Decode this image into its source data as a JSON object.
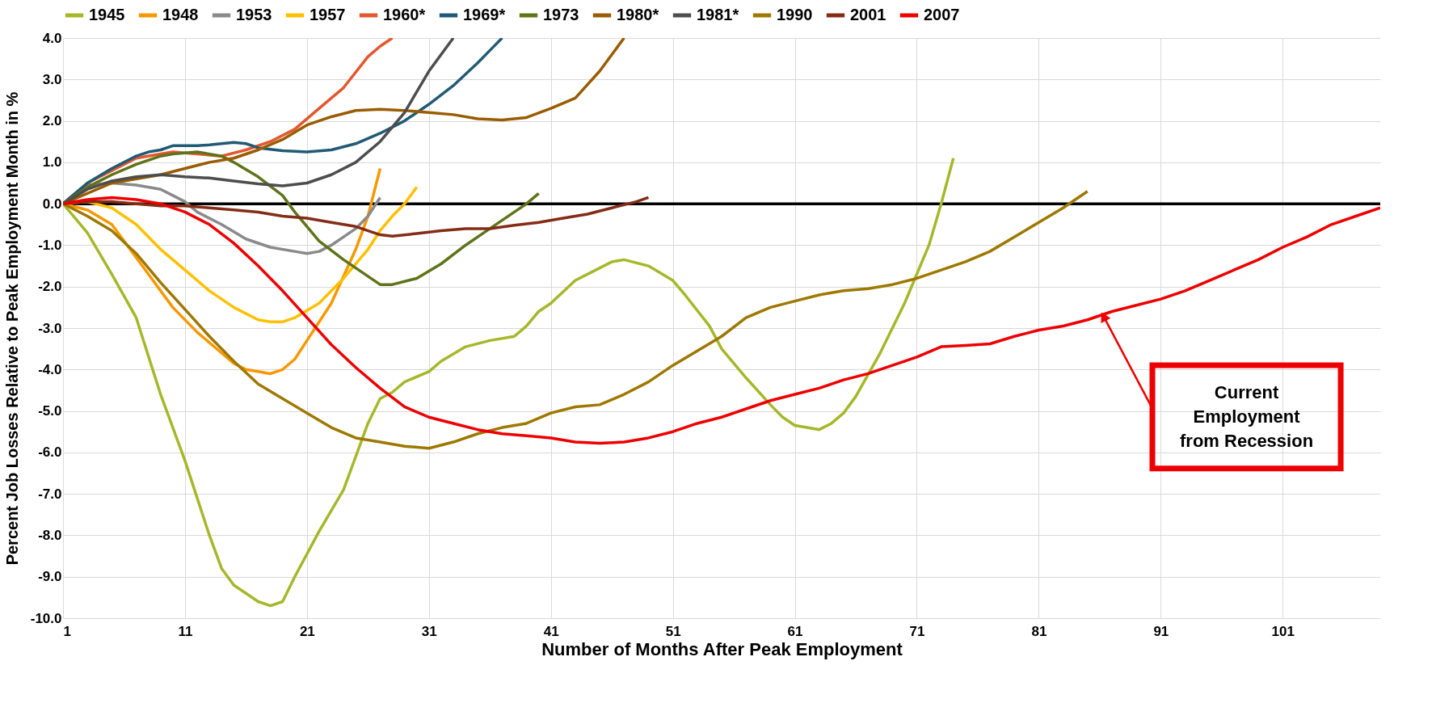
{
  "chart_data": {
    "type": "line",
    "xlabel": "Number of Months After Peak Employment",
    "ylabel": "Percent Job Losses Relative to Peak Employment Month in %",
    "xlim": [
      1,
      109
    ],
    "xticks": [
      1,
      11,
      21,
      31,
      41,
      51,
      61,
      71,
      81,
      91,
      101
    ],
    "ylim": [
      -10,
      4
    ],
    "yticks": [
      {
        "value": 4,
        "label": "4.0"
      },
      {
        "value": 3,
        "label": "3.0"
      },
      {
        "value": 2,
        "label": "2.0"
      },
      {
        "value": 1,
        "label": "1.0"
      },
      {
        "value": 0,
        "label": "0.0"
      },
      {
        "value": -1,
        "label": "-1.0"
      },
      {
        "value": -2,
        "label": "-2.0"
      },
      {
        "value": -3,
        "label": "-3.0"
      },
      {
        "value": -4,
        "label": "-4.0"
      },
      {
        "value": -5,
        "label": "-5.0"
      },
      {
        "value": -6,
        "label": "-6.0"
      },
      {
        "value": -7,
        "label": "-7.0"
      },
      {
        "value": -8,
        "label": "-8.0"
      },
      {
        "value": -9,
        "label": "-9.0"
      },
      {
        "value": -10,
        "label": "-10.0"
      }
    ],
    "grid": true,
    "legend": "top",
    "ref_lines": [
      {
        "axis": "y",
        "value": 0,
        "color": "#000000"
      }
    ],
    "annotations": [
      "Current\nEmployment\nfrom Recession"
    ],
    "series": [
      {
        "name": "1945",
        "color": "#a5b82a",
        "x": [
          1,
          3,
          5,
          7,
          9,
          11,
          13,
          14,
          15,
          17,
          18,
          19,
          20,
          22,
          24,
          26,
          27,
          28,
          29,
          31,
          32,
          34,
          36,
          38,
          39,
          40,
          41,
          43,
          45,
          46,
          47,
          49,
          51,
          52,
          54,
          55,
          57,
          59,
          60,
          61,
          62,
          63,
          64,
          65,
          66,
          68,
          70,
          72,
          73,
          74
        ],
        "values": [
          0,
          -0.7,
          -1.7,
          -2.75,
          -4.6,
          -6.2,
          -8.0,
          -8.8,
          -9.2,
          -9.6,
          -9.7,
          -9.6,
          -9.0,
          -7.9,
          -6.9,
          -5.3,
          -4.7,
          -4.55,
          -4.3,
          -4.05,
          -3.8,
          -3.45,
          -3.3,
          -3.2,
          -2.95,
          -2.6,
          -2.4,
          -1.85,
          -1.55,
          -1.4,
          -1.35,
          -1.5,
          -1.85,
          -2.2,
          -2.95,
          -3.5,
          -4.2,
          -4.85,
          -5.15,
          -5.35,
          -5.4,
          -5.45,
          -5.3,
          -5.05,
          -4.65,
          -3.6,
          -2.4,
          -1.0,
          0.0,
          1.1
        ]
      },
      {
        "name": "1948",
        "color": "#f79800",
        "x": [
          1,
          3,
          5,
          6,
          8,
          10,
          12,
          14,
          15,
          16,
          17,
          18,
          19,
          20,
          21,
          23,
          25,
          26,
          27
        ],
        "values": [
          0,
          -0.15,
          -0.5,
          -0.9,
          -1.7,
          -2.5,
          -3.1,
          -3.6,
          -3.85,
          -4.0,
          -4.05,
          -4.1,
          -4.0,
          -3.75,
          -3.3,
          -2.4,
          -1.1,
          -0.3,
          0.85
        ]
      },
      {
        "name": "1953",
        "color": "#8a8a8a",
        "x": [
          1,
          3,
          5,
          7,
          9,
          10,
          11,
          12,
          14,
          16,
          18,
          20,
          21,
          22,
          23,
          25,
          26,
          27
        ],
        "values": [
          0,
          0.45,
          0.5,
          0.45,
          0.35,
          0.2,
          0.05,
          -0.2,
          -0.5,
          -0.85,
          -1.05,
          -1.15,
          -1.2,
          -1.15,
          -1.0,
          -0.6,
          -0.3,
          0.15
        ]
      },
      {
        "name": "1957",
        "color": "#ffc000",
        "x": [
          1,
          3,
          5,
          7,
          9,
          11,
          13,
          15,
          17,
          18,
          19,
          20,
          22,
          24,
          26,
          27,
          28,
          29,
          30
        ],
        "values": [
          0,
          0.05,
          -0.1,
          -0.5,
          -1.1,
          -1.6,
          -2.1,
          -2.5,
          -2.8,
          -2.85,
          -2.85,
          -2.75,
          -2.4,
          -1.8,
          -1.1,
          -0.65,
          -0.3,
          0.0,
          0.4
        ]
      },
      {
        "name": "1960*",
        "color": "#e4572e",
        "x": [
          1,
          3,
          5,
          7,
          9,
          10,
          12,
          14,
          16,
          18,
          20,
          22,
          24,
          26,
          27,
          28
        ],
        "values": [
          0,
          0.5,
          0.8,
          1.1,
          1.2,
          1.25,
          1.2,
          1.15,
          1.3,
          1.5,
          1.8,
          2.3,
          2.8,
          3.55,
          3.8,
          4.0
        ]
      },
      {
        "name": "1969*",
        "color": "#215a75",
        "x": [
          1,
          3,
          5,
          7,
          8,
          9,
          10,
          12,
          13,
          15,
          16,
          17,
          19,
          21,
          23,
          25,
          27,
          29,
          31,
          33,
          35,
          36,
          37
        ],
        "values": [
          0,
          0.5,
          0.85,
          1.15,
          1.25,
          1.3,
          1.4,
          1.4,
          1.42,
          1.48,
          1.45,
          1.35,
          1.28,
          1.25,
          1.3,
          1.45,
          1.7,
          2.0,
          2.4,
          2.85,
          3.4,
          3.7,
          4.0
        ]
      },
      {
        "name": "1973",
        "color": "#5f7319",
        "x": [
          1,
          3,
          5,
          7,
          9,
          10,
          12,
          14,
          15,
          17,
          19,
          20,
          22,
          24,
          26,
          27,
          28,
          30,
          32,
          34,
          36,
          38,
          39,
          40
        ],
        "values": [
          0,
          0.4,
          0.7,
          0.95,
          1.15,
          1.2,
          1.25,
          1.15,
          1.0,
          0.65,
          0.2,
          -0.2,
          -0.9,
          -1.35,
          -1.75,
          -1.95,
          -1.95,
          -1.8,
          -1.45,
          -1.0,
          -0.6,
          -0.2,
          0.0,
          0.25
        ]
      },
      {
        "name": "1980*",
        "color": "#995c00",
        "x": [
          1,
          5,
          9,
          11,
          13,
          15,
          17,
          19,
          21,
          23,
          25,
          27,
          29,
          31,
          33,
          35,
          37,
          39,
          41,
          43,
          45,
          46,
          47
        ],
        "values": [
          0,
          0.5,
          0.7,
          0.85,
          1.0,
          1.1,
          1.3,
          1.55,
          1.9,
          2.1,
          2.25,
          2.28,
          2.25,
          2.2,
          2.15,
          2.05,
          2.02,
          2.08,
          2.3,
          2.55,
          3.2,
          3.6,
          4.0
        ]
      },
      {
        "name": "1981*",
        "color": "#4d4d4d",
        "x": [
          1,
          3,
          5,
          7,
          9,
          11,
          13,
          15,
          17,
          19,
          21,
          23,
          25,
          27,
          29,
          30,
          31,
          32,
          33
        ],
        "values": [
          0,
          0.35,
          0.55,
          0.65,
          0.7,
          0.65,
          0.62,
          0.55,
          0.48,
          0.43,
          0.5,
          0.7,
          1.0,
          1.5,
          2.2,
          2.7,
          3.2,
          3.6,
          4.0
        ]
      },
      {
        "name": "1990",
        "color": "#9e7800",
        "x": [
          1,
          3,
          5,
          7,
          9,
          11,
          13,
          15,
          17,
          19,
          21,
          23,
          25,
          27,
          29,
          31,
          33,
          35,
          37,
          39,
          41,
          43,
          45,
          47,
          49,
          51,
          53,
          55,
          57,
          59,
          61,
          63,
          65,
          67,
          69,
          71,
          73,
          75,
          77,
          79,
          81,
          83,
          84,
          85
        ],
        "values": [
          0,
          -0.3,
          -0.65,
          -1.2,
          -1.9,
          -2.55,
          -3.2,
          -3.8,
          -4.35,
          -4.7,
          -5.05,
          -5.4,
          -5.65,
          -5.75,
          -5.85,
          -5.9,
          -5.75,
          -5.55,
          -5.4,
          -5.3,
          -5.05,
          -4.9,
          -4.85,
          -4.6,
          -4.3,
          -3.9,
          -3.55,
          -3.2,
          -2.75,
          -2.5,
          -2.35,
          -2.2,
          -2.1,
          -2.05,
          -1.95,
          -1.8,
          -1.6,
          -1.4,
          -1.15,
          -0.8,
          -0.45,
          -0.1,
          0.1,
          0.3
        ]
      },
      {
        "name": "2001",
        "color": "#842d16",
        "x": [
          1,
          3,
          5,
          7,
          9,
          11,
          13,
          15,
          17,
          19,
          21,
          23,
          25,
          27,
          28,
          30,
          32,
          34,
          36,
          38,
          40,
          42,
          44,
          46,
          48,
          49
        ],
        "values": [
          0,
          0.05,
          0.05,
          0.0,
          -0.05,
          -0.05,
          -0.1,
          -0.15,
          -0.2,
          -0.3,
          -0.35,
          -0.45,
          -0.55,
          -0.75,
          -0.78,
          -0.72,
          -0.65,
          -0.6,
          -0.6,
          -0.52,
          -0.45,
          -0.35,
          -0.25,
          -0.1,
          0.05,
          0.15
        ]
      },
      {
        "name": "2007",
        "color": "#ee0000",
        "x": [
          1,
          3,
          5,
          7,
          9,
          11,
          13,
          15,
          17,
          19,
          21,
          23,
          25,
          27,
          29,
          31,
          33,
          35,
          37,
          39,
          41,
          43,
          45,
          47,
          49,
          51,
          53,
          55,
          57,
          59,
          61,
          63,
          65,
          67,
          69,
          71,
          73,
          75,
          77,
          79,
          81,
          83,
          85,
          87,
          89,
          91,
          93,
          95,
          97,
          99,
          101,
          103,
          105,
          107,
          109
        ],
        "values": [
          0,
          0.1,
          0.15,
          0.1,
          0.0,
          -0.2,
          -0.5,
          -0.95,
          -1.5,
          -2.1,
          -2.75,
          -3.4,
          -3.95,
          -4.45,
          -4.9,
          -5.15,
          -5.3,
          -5.45,
          -5.55,
          -5.6,
          -5.65,
          -5.75,
          -5.78,
          -5.75,
          -5.65,
          -5.5,
          -5.3,
          -5.15,
          -4.95,
          -4.75,
          -4.6,
          -4.45,
          -4.25,
          -4.1,
          -3.9,
          -3.7,
          -3.45,
          -3.42,
          -3.38,
          -3.2,
          -3.05,
          -2.95,
          -2.8,
          -2.6,
          -2.45,
          -2.3,
          -2.1,
          -1.85,
          -1.6,
          -1.35,
          -1.05,
          -0.8,
          -0.5,
          -0.3,
          -0.1
        ]
      }
    ]
  }
}
